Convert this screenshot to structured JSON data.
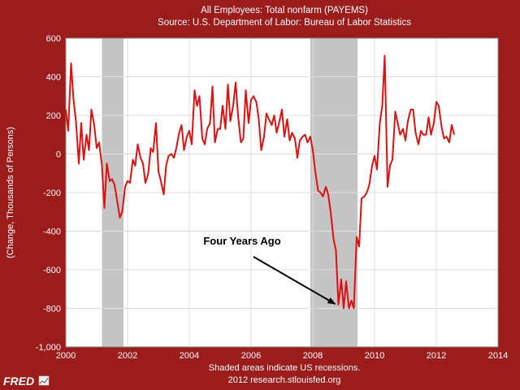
{
  "chart_data": {
    "type": "line",
    "title": "All Employees: Total nonfarm (PAYEMS)",
    "subtitle": "Source: U.S. Department of Labor: Bureau of Labor Statistics",
    "ylabel": "(Change, Thousands of Persons)",
    "xlabel": "",
    "xlim": [
      2000,
      2014
    ],
    "ylim": [
      -1000,
      600
    ],
    "xticks": [
      2000,
      2002,
      2004,
      2006,
      2008,
      2010,
      2012,
      2014
    ],
    "yticks": [
      -1000,
      -800,
      -600,
      -400,
      -200,
      0,
      200,
      400,
      600
    ],
    "ytick_labels": [
      "-1,000",
      "-800",
      "-600",
      "-400",
      "-200",
      "0",
      "200",
      "400",
      "600"
    ],
    "grid": true,
    "recessions": [
      {
        "start": 2001.17,
        "end": 2001.87
      },
      {
        "start": 2007.92,
        "end": 2009.45
      }
    ],
    "series": [
      {
        "name": "PAYEMS change",
        "color": "#dd1111",
        "x": [
          2000.0,
          2000.08,
          2000.17,
          2000.25,
          2000.33,
          2000.42,
          2000.5,
          2000.58,
          2000.67,
          2000.75,
          2000.83,
          2000.92,
          2001.0,
          2001.08,
          2001.17,
          2001.25,
          2001.33,
          2001.42,
          2001.5,
          2001.58,
          2001.67,
          2001.75,
          2001.83,
          2001.92,
          2002.0,
          2002.08,
          2002.17,
          2002.25,
          2002.33,
          2002.42,
          2002.5,
          2002.58,
          2002.67,
          2002.75,
          2002.83,
          2002.92,
          2003.0,
          2003.08,
          2003.17,
          2003.25,
          2003.33,
          2003.42,
          2003.5,
          2003.58,
          2003.67,
          2003.75,
          2003.83,
          2003.92,
          2004.0,
          2004.08,
          2004.17,
          2004.25,
          2004.33,
          2004.42,
          2004.5,
          2004.58,
          2004.67,
          2004.75,
          2004.83,
          2004.92,
          2005.0,
          2005.08,
          2005.17,
          2005.25,
          2005.33,
          2005.42,
          2005.5,
          2005.58,
          2005.67,
          2005.75,
          2005.83,
          2005.92,
          2006.0,
          2006.08,
          2006.17,
          2006.25,
          2006.33,
          2006.42,
          2006.5,
          2006.58,
          2006.67,
          2006.75,
          2006.83,
          2006.92,
          2007.0,
          2007.08,
          2007.17,
          2007.25,
          2007.33,
          2007.42,
          2007.5,
          2007.58,
          2007.67,
          2007.75,
          2007.83,
          2007.92,
          2008.0,
          2008.08,
          2008.17,
          2008.25,
          2008.33,
          2008.42,
          2008.5,
          2008.58,
          2008.67,
          2008.75,
          2008.83,
          2008.92,
          2009.0,
          2009.08,
          2009.17,
          2009.25,
          2009.33,
          2009.42,
          2009.5,
          2009.58,
          2009.67,
          2009.75,
          2009.83,
          2009.92,
          2010.0,
          2010.08,
          2010.17,
          2010.25,
          2010.33,
          2010.42,
          2010.5,
          2010.58,
          2010.67,
          2010.75,
          2010.83,
          2010.92,
          2011.0,
          2011.08,
          2011.17,
          2011.25,
          2011.33,
          2011.42,
          2011.5,
          2011.58,
          2011.67,
          2011.75,
          2011.83,
          2011.92,
          2012.0,
          2012.08,
          2012.17,
          2012.25,
          2012.33,
          2012.42,
          2012.5,
          2012.58
        ],
        "values": [
          230,
          120,
          470,
          280,
          170,
          -50,
          160,
          -30,
          100,
          20,
          230,
          150,
          30,
          60,
          -60,
          -280,
          -50,
          -140,
          -130,
          -160,
          -250,
          -330,
          -300,
          -170,
          -140,
          -150,
          -30,
          -60,
          50,
          -20,
          -50,
          -150,
          -100,
          30,
          10,
          160,
          -90,
          -140,
          -210,
          -60,
          -10,
          0,
          -20,
          30,
          110,
          150,
          20,
          90,
          120,
          50,
          330,
          250,
          300,
          80,
          50,
          130,
          160,
          350,
          60,
          130,
          130,
          250,
          130,
          360,
          170,
          250,
          370,
          200,
          60,
          80,
          330,
          160,
          280,
          300,
          270,
          180,
          20,
          90,
          210,
          180,
          150,
          200,
          110,
          170,
          230,
          90,
          180,
          70,
          110,
          80,
          -20,
          70,
          90,
          100,
          60,
          90,
          20,
          -90,
          -190,
          -200,
          -220,
          -170,
          -210,
          -300,
          -440,
          -500,
          -780,
          -650,
          -800,
          -660,
          -800,
          -760,
          -800,
          -430,
          -480,
          -230,
          -220,
          -200,
          -160,
          -60,
          -10,
          -80,
          160,
          250,
          510,
          -170,
          -60,
          -30,
          220,
          160,
          100,
          130,
          70,
          170,
          230,
          230,
          110,
          50,
          120,
          100,
          100,
          190,
          100,
          160,
          270,
          250,
          140,
          80,
          90,
          60,
          150,
          100
        ]
      }
    ],
    "annotations": [
      {
        "text": "Four Years Ago",
        "arrow_to": {
          "x": 2008.83,
          "y": -790
        }
      }
    ],
    "footnote": "Shaded areas indicate US recessions.",
    "credit": "2012 research.stlouisfed.org",
    "logo": "FRED"
  }
}
